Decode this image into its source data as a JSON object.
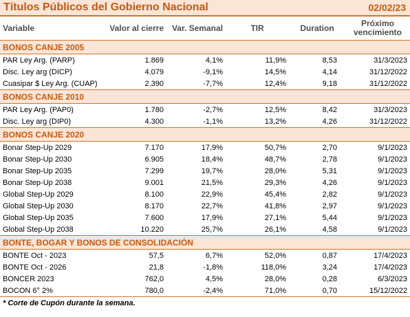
{
  "title": "Títulos Públicos del Gobierno Nacional",
  "date": "02/02/23",
  "headers": {
    "variable": "Variable",
    "valor": "Valor al cierre",
    "var_semanal": "Var. Semanal",
    "tir": "TIR",
    "duration": "Duration",
    "vencimiento_1": "Próximo",
    "vencimiento_2": "vencimiento"
  },
  "sections": [
    {
      "label": "BONOS CANJE 2005",
      "rows": [
        {
          "name": "PAR Ley Arg. (PARP)",
          "valor": "1.869",
          "var": "4,1%",
          "tir": "11,9%",
          "duration": "8,53",
          "venc": "31/3/2023"
        },
        {
          "name": "Disc. Ley arg (DICP)",
          "valor": "4.079",
          "var": "-9,1%",
          "tir": "14,5%",
          "duration": "4,14",
          "venc": "31/12/2022"
        },
        {
          "name": "Cuasipar $ Ley Arg. (CUAP)",
          "valor": "2.390",
          "var": "-7,7%",
          "tir": "12,4%",
          "duration": "9,18",
          "venc": "31/12/2022"
        }
      ]
    },
    {
      "label": "BONOS CANJE 2010",
      "rows": [
        {
          "name": "PAR Ley Arg. (PAP0)",
          "valor": "1.780",
          "var": "-2,7%",
          "tir": "12,5%",
          "duration": "8,42",
          "venc": "31/3/2023"
        },
        {
          "name": "Disc. Ley arg (DIP0)",
          "valor": "4.300",
          "var": "-1,1%",
          "tir": "13,2%",
          "duration": "4,26",
          "venc": "31/12/2022"
        }
      ]
    },
    {
      "label": "BONOS CANJE 2020",
      "rows": [
        {
          "name": "Bonar Step-Up 2029",
          "valor": "7.170",
          "var": "17,9%",
          "tir": "50,7%",
          "duration": "2,70",
          "venc": "9/1/2023"
        },
        {
          "name": "Bonar Step-Up 2030",
          "valor": "6.905",
          "var": "18,4%",
          "tir": "48,7%",
          "duration": "2,78",
          "venc": "9/1/2023"
        },
        {
          "name": "Bonar Step-Up 2035",
          "valor": "7.299",
          "var": "19,7%",
          "tir": "28,0%",
          "duration": "5,31",
          "venc": "9/1/2023"
        },
        {
          "name": "Bonar Step-Up 2038",
          "valor": "9.001",
          "var": "21,5%",
          "tir": "29,3%",
          "duration": "4,26",
          "venc": "9/1/2023"
        },
        {
          "name": "Global Step-Up 2029",
          "valor": "8.100",
          "var": "22,9%",
          "tir": "45,4%",
          "duration": "2,82",
          "venc": "9/1/2023"
        },
        {
          "name": "Global Step-Up 2030",
          "valor": "8.170",
          "var": "22,7%",
          "tir": "41,8%",
          "duration": "2,97",
          "venc": "9/1/2023"
        },
        {
          "name": "Global Step-Up 2035",
          "valor": "7.600",
          "var": "17,9%",
          "tir": "27,1%",
          "duration": "5,44",
          "venc": "9/1/2023"
        },
        {
          "name": "Global Step-Up 2038",
          "valor": "10.220",
          "var": "25,7%",
          "tir": "26,1%",
          "duration": "4,58",
          "venc": "9/1/2023"
        }
      ]
    },
    {
      "label": "BONTE, BOGAR Y BONOS DE CONSOLIDACIÓN",
      "rows": [
        {
          "name": "BONTE Oct - 2023",
          "valor": "57,5",
          "var": "6,7%",
          "tir": "52,0%",
          "duration": "0,87",
          "venc": "17/4/2023"
        },
        {
          "name": "BONTE Oct - 2026",
          "valor": "21,8",
          "var": "-1,8%",
          "tir": "118,0%",
          "duration": "3,24",
          "venc": "17/4/2023"
        },
        {
          "name": "BONCER 2023",
          "valor": "762,0",
          "var": "4,5%",
          "tir": "28,0%",
          "duration": "0,28",
          "venc": "6/3/2023"
        },
        {
          "name": "BOCON 6° 2%",
          "valor": "780,0",
          "var": "-2,4%",
          "tir": "71,0%",
          "duration": "0,70",
          "venc": "15/12/2022"
        }
      ]
    }
  ],
  "footnote": "* Corte de Cupón durante la semana."
}
